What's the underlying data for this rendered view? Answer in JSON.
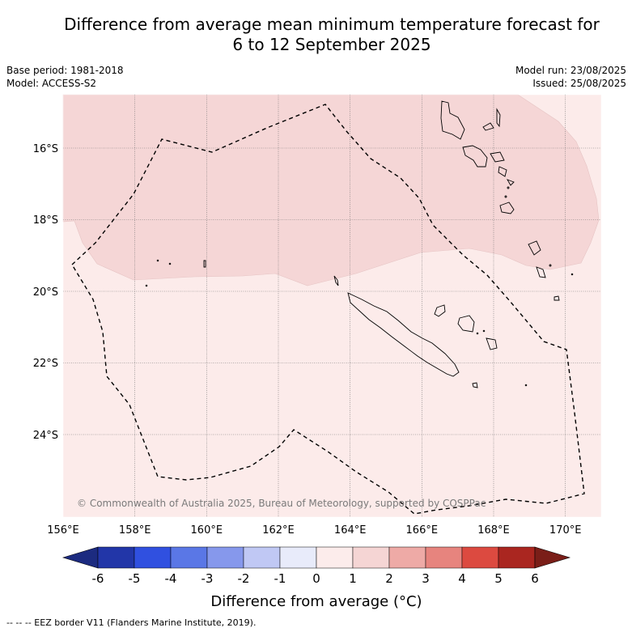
{
  "title_line1": "Difference from average mean minimum temperature forecast for",
  "title_line2": "6 to 12 September 2025",
  "meta_left": [
    "Base period: 1981-2018",
    "Model: ACCESS-S2"
  ],
  "meta_right": [
    "Model run: 23/08/2025",
    "Issued: 25/08/2025"
  ],
  "map": {
    "lon_range": [
      156,
      171
    ],
    "lat_range": [
      -26.3,
      -14.5
    ],
    "lon_ticks": [
      "156°E",
      "158°E",
      "160°E",
      "162°E",
      "164°E",
      "166°E",
      "168°E",
      "170°E"
    ],
    "lat_ticks": [
      "16°S",
      "18°S",
      "20°S",
      "22°S",
      "24°S"
    ],
    "grid": true,
    "copyright": "© Commonwealth of Australia 2025, Bureau of Meteorology, supported by COSPPac",
    "anomaly_regions": [
      {
        "range": "1 to 2",
        "color": "#f5d6d6",
        "location": "north of about 19.5°S"
      },
      {
        "range": "0 to 1",
        "color": "#fcebea",
        "location": "remainder"
      }
    ]
  },
  "colorbar": {
    "labels": [
      "-6",
      "-5",
      "-4",
      "-3",
      "-2",
      "-1",
      "0",
      "1",
      "2",
      "3",
      "4",
      "5",
      "6"
    ],
    "colors": [
      "#2236a8",
      "#3050e0",
      "#5a77e6",
      "#8698ec",
      "#c0c8f4",
      "#e8ebfa",
      "#fceceb",
      "#f5d5d4",
      "#eeaaa6",
      "#e7847e",
      "#dc4a40",
      "#aa2620"
    ],
    "under_color": "#1c2b80",
    "over_color": "#7a1e18",
    "title": "Difference from average (°C)"
  },
  "footer": "-- -- -- EEZ border V11 (Flanders Marine Institute, 2019)."
}
